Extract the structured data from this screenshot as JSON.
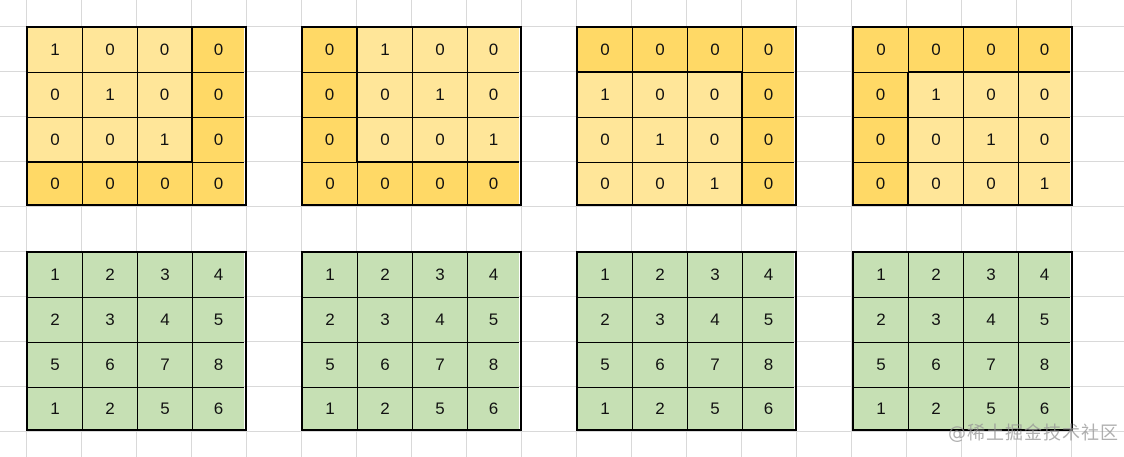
{
  "colors": {
    "light": "#FFE699",
    "dark": "#FFD966",
    "green": "#C6E0B4"
  },
  "mask_matrices": [
    {
      "values": [
        [
          1,
          0,
          0,
          0
        ],
        [
          0,
          1,
          0,
          0
        ],
        [
          0,
          0,
          1,
          0
        ],
        [
          0,
          0,
          0,
          0
        ]
      ],
      "dark_rows": [
        3
      ],
      "dark_cols": [
        3
      ]
    },
    {
      "values": [
        [
          0,
          1,
          0,
          0
        ],
        [
          0,
          0,
          1,
          0
        ],
        [
          0,
          0,
          0,
          1
        ],
        [
          0,
          0,
          0,
          0
        ]
      ],
      "dark_rows": [
        3
      ],
      "dark_cols": [
        0
      ]
    },
    {
      "values": [
        [
          0,
          0,
          0,
          0
        ],
        [
          1,
          0,
          0,
          0
        ],
        [
          0,
          1,
          0,
          0
        ],
        [
          0,
          0,
          1,
          0
        ]
      ],
      "dark_rows": [
        0
      ],
      "dark_cols": [
        3
      ]
    },
    {
      "values": [
        [
          0,
          0,
          0,
          0
        ],
        [
          0,
          1,
          0,
          0
        ],
        [
          0,
          0,
          1,
          0
        ],
        [
          0,
          0,
          0,
          1
        ]
      ],
      "dark_rows": [
        0
      ],
      "dark_cols": [
        0
      ]
    }
  ],
  "value_matrices": [
    {
      "values": [
        [
          1,
          2,
          3,
          4
        ],
        [
          2,
          3,
          4,
          5
        ],
        [
          5,
          6,
          7,
          8
        ],
        [
          1,
          2,
          5,
          6
        ]
      ]
    },
    {
      "values": [
        [
          1,
          2,
          3,
          4
        ],
        [
          2,
          3,
          4,
          5
        ],
        [
          5,
          6,
          7,
          8
        ],
        [
          1,
          2,
          5,
          6
        ]
      ]
    },
    {
      "values": [
        [
          1,
          2,
          3,
          4
        ],
        [
          2,
          3,
          4,
          5
        ],
        [
          5,
          6,
          7,
          8
        ],
        [
          1,
          2,
          5,
          6
        ]
      ]
    },
    {
      "values": [
        [
          1,
          2,
          3,
          4
        ],
        [
          2,
          3,
          4,
          5
        ],
        [
          5,
          6,
          7,
          8
        ],
        [
          1,
          2,
          5,
          6
        ]
      ]
    }
  ],
  "watermark": "@稀土掘金技术社区"
}
